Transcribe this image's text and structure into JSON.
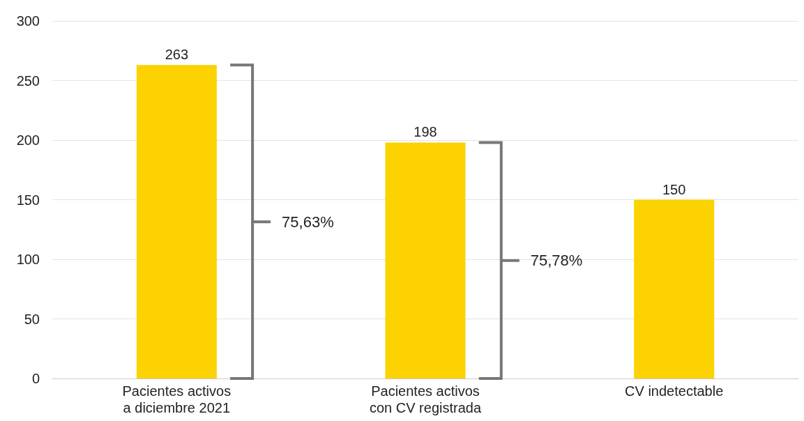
{
  "chart_data": {
    "type": "bar",
    "categories": [
      "Pacientes activos\na diciembre 2021",
      "Pacientes activos\ncon CV registrada",
      "CV indetectable"
    ],
    "values": [
      263,
      198,
      150
    ],
    "color": "#fcd200",
    "data_labels": true,
    "ylim": [
      0,
      300
    ],
    "yticks": [
      0,
      50,
      100,
      150,
      200,
      250,
      300
    ],
    "grid": "y",
    "annotations": [
      "75,63%",
      "75,78%"
    ]
  }
}
